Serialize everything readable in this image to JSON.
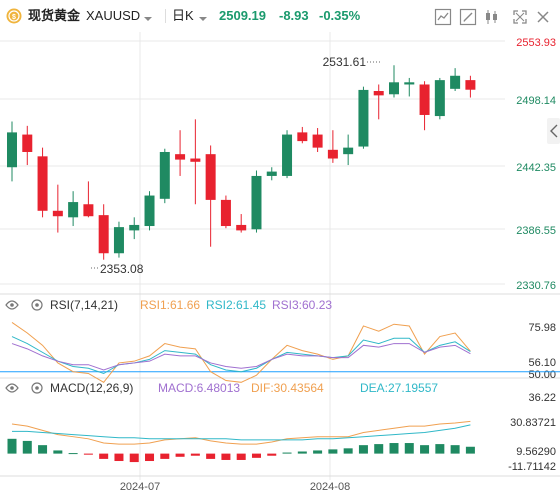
{
  "header": {
    "name": "现货黄金",
    "symbol": "XAUUSD",
    "period": "日K",
    "price": "2509.19",
    "change": "-8.93",
    "change_pct": "-0.35%",
    "icons": [
      "compare-icon",
      "draw-icon",
      "candle-type-icon",
      "fullscreen-icon",
      "close-icon"
    ]
  },
  "colors": {
    "up": "#1f8a62",
    "down": "#e8222f",
    "price_header": "#1b9a6d",
    "rsi1": "#f0a050",
    "rsi2": "#30b8c8",
    "rsi3": "#a070d0",
    "macd": "#a070d0",
    "dif": "#f0a050",
    "dea": "#30b8c8",
    "ref_line": "#1f9fff"
  },
  "chart_data": [
    {
      "type": "candlestick",
      "name": "XAUUSD 日K",
      "y_axis_labels": [
        "2553.93",
        "2498.14",
        "2442.35",
        "2386.55",
        "2330.76"
      ],
      "ylim": [
        2330.76,
        2553.93
      ],
      "max_label": "2531.61",
      "min_label": "2353.08",
      "x_axis_labels": [
        "2024-07",
        "2024-08"
      ],
      "candles": [
        {
          "o": 2438,
          "h": 2480,
          "l": 2425,
          "c": 2470
        },
        {
          "o": 2468,
          "h": 2476,
          "l": 2440,
          "c": 2452
        },
        {
          "o": 2448,
          "h": 2456,
          "l": 2392,
          "c": 2398
        },
        {
          "o": 2398,
          "h": 2422,
          "l": 2378,
          "c": 2393
        },
        {
          "o": 2392,
          "h": 2416,
          "l": 2384,
          "c": 2406
        },
        {
          "o": 2404,
          "h": 2425,
          "l": 2392,
          "c": 2393
        },
        {
          "o": 2394,
          "h": 2404,
          "l": 2353.08,
          "c": 2359
        },
        {
          "o": 2359,
          "h": 2388,
          "l": 2355,
          "c": 2383
        },
        {
          "o": 2380,
          "h": 2392,
          "l": 2372,
          "c": 2385
        },
        {
          "o": 2384,
          "h": 2416,
          "l": 2380,
          "c": 2412
        },
        {
          "o": 2409,
          "h": 2455,
          "l": 2405,
          "c": 2452
        },
        {
          "o": 2450,
          "h": 2472,
          "l": 2430,
          "c": 2445
        },
        {
          "o": 2446,
          "h": 2482,
          "l": 2404,
          "c": 2443
        },
        {
          "o": 2450,
          "h": 2458,
          "l": 2365,
          "c": 2408
        },
        {
          "o": 2408,
          "h": 2412,
          "l": 2382,
          "c": 2384
        },
        {
          "o": 2385,
          "h": 2395,
          "l": 2378,
          "c": 2380
        },
        {
          "o": 2381,
          "h": 2435,
          "l": 2378,
          "c": 2430
        },
        {
          "o": 2430,
          "h": 2438,
          "l": 2426,
          "c": 2434
        },
        {
          "o": 2430,
          "h": 2472,
          "l": 2428,
          "c": 2468
        },
        {
          "o": 2470,
          "h": 2475,
          "l": 2460,
          "c": 2462
        },
        {
          "o": 2468,
          "h": 2474,
          "l": 2452,
          "c": 2456
        },
        {
          "o": 2454,
          "h": 2472,
          "l": 2442,
          "c": 2446
        },
        {
          "o": 2450,
          "h": 2468,
          "l": 2440,
          "c": 2456
        },
        {
          "o": 2457,
          "h": 2512,
          "l": 2455,
          "c": 2509
        },
        {
          "o": 2508,
          "h": 2514,
          "l": 2482,
          "c": 2504
        },
        {
          "o": 2505,
          "h": 2531.61,
          "l": 2502,
          "c": 2516
        },
        {
          "o": 2514,
          "h": 2520,
          "l": 2503,
          "c": 2516
        },
        {
          "o": 2514,
          "h": 2517,
          "l": 2472,
          "c": 2486
        },
        {
          "o": 2485,
          "h": 2520,
          "l": 2482,
          "c": 2518
        },
        {
          "o": 2510,
          "h": 2529,
          "l": 2508,
          "c": 2522
        },
        {
          "o": 2518,
          "h": 2522,
          "l": 2502,
          "c": 2509.19
        }
      ]
    },
    {
      "type": "line",
      "name": "RSI(7,14,21)",
      "legend": [
        {
          "label": "RSI1:61.66",
          "color_key": "rsi1"
        },
        {
          "label": "RSI2:61.45",
          "color_key": "rsi2"
        },
        {
          "label": "RSI3:60.23",
          "color_key": "rsi3"
        }
      ],
      "y_axis_labels": [
        "75.98",
        "56.10",
        "50.00",
        "36.22"
      ],
      "ylim": [
        36.22,
        75.98
      ],
      "ref_level": 50,
      "series": [
        {
          "name": "RSI1",
          "values": [
            78,
            72,
            65,
            55,
            50,
            49,
            44,
            55,
            56,
            59,
            66,
            64,
            63,
            50,
            45,
            44,
            48,
            57,
            65,
            62,
            60,
            57,
            59,
            76,
            73,
            77,
            76,
            60,
            70,
            72,
            61.66
          ]
        },
        {
          "name": "RSI2",
          "values": [
            70,
            66,
            61,
            56,
            53,
            52,
            49,
            54,
            55,
            57,
            62,
            61,
            60,
            54,
            51,
            50,
            52,
            57,
            61,
            60,
            59,
            58,
            59,
            68,
            66,
            69,
            69,
            61,
            65,
            67,
            61.45
          ]
        },
        {
          "name": "RSI3",
          "values": [
            66,
            63,
            59,
            56,
            54,
            54,
            51,
            54,
            55,
            56,
            60,
            59,
            59,
            55,
            53,
            52,
            53,
            57,
            60,
            59,
            59,
            58,
            58,
            65,
            64,
            66,
            66,
            61,
            64,
            65,
            60.23
          ]
        }
      ]
    },
    {
      "type": "bar",
      "name": "MACD(12,26,9)",
      "legend": [
        {
          "label": "MACD:6.48013",
          "color_key": "macd"
        },
        {
          "label": "DIF:30.43564",
          "color_key": "dif"
        },
        {
          "label": "DEA:27.19557",
          "color_key": "dea"
        }
      ],
      "y_axis_labels": [
        "30.83721",
        "9.56290",
        "-11.71142"
      ],
      "ylim": [
        -11.71142,
        30.83721
      ],
      "histogram": [
        14,
        12,
        8,
        3,
        0.5,
        -1,
        -5,
        -7,
        -8,
        -7,
        -5,
        -3,
        -2,
        -5,
        -6,
        -6,
        -4,
        -2,
        1,
        2,
        3,
        4,
        5,
        8,
        9,
        10,
        10,
        8,
        9,
        8,
        6.48
      ],
      "series": [
        {
          "name": "DIF",
          "values": [
            28,
            26,
            22,
            18,
            16,
            14,
            10,
            9,
            9,
            10,
            13,
            14,
            15,
            12,
            10,
            9,
            9,
            11,
            14,
            15,
            16,
            16,
            16,
            20,
            22,
            24,
            26,
            26,
            28,
            29,
            30.44
          ]
        },
        {
          "name": "DEA",
          "values": [
            21,
            21,
            20,
            19,
            18,
            17,
            16,
            15,
            15,
            14,
            14,
            14,
            14,
            14,
            14,
            13,
            13,
            13,
            13,
            13,
            14,
            14,
            15,
            16,
            17,
            18,
            19,
            20,
            22,
            24,
            27.2
          ]
        }
      ]
    }
  ]
}
